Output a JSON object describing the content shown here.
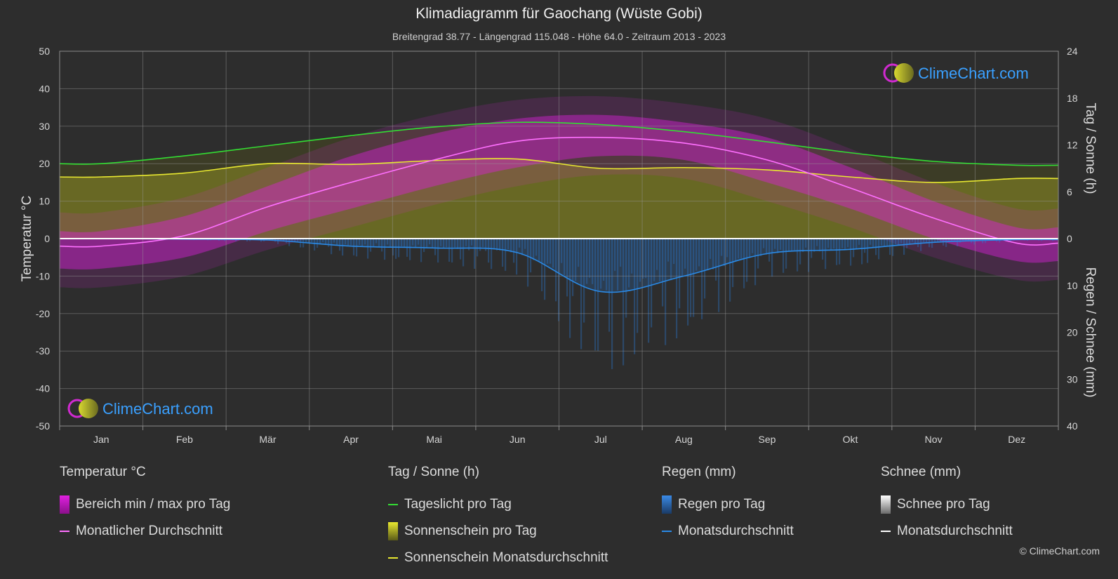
{
  "title": "Klimadiagramm für Gaochang (Wüste Gobi)",
  "subtitle": "Breitengrad 38.77 - Längengrad 115.048 - Höhe 64.0 - Zeitraum 2013 - 2023",
  "watermark": "ClimeChart.com",
  "copyright": "© ClimeChart.com",
  "colors": {
    "background": "#2d2d2d",
    "temp_range": "#e020e0",
    "temp_avg": "#ff70ff",
    "daylight": "#33dd33",
    "sunshine_fill": "#a8a830",
    "sunshine_avg": "#e8e830",
    "rain": "#2a7ad6",
    "rain_avg": "#2a8ae6",
    "snow": "#9a9a9a",
    "snow_avg": "#ffffff",
    "brand": "#3aa0ff"
  },
  "legend": {
    "temperature": {
      "title": "Temperatur °C",
      "range": "Bereich min / max pro Tag",
      "avg": "Monatlicher Durchschnitt"
    },
    "sun": {
      "title": "Tag / Sonne (h)",
      "daylight": "Tageslicht pro Tag",
      "sunshine": "Sonnenschein pro Tag",
      "sunshine_avg": "Sonnenschein Monatsdurchschnitt"
    },
    "rain": {
      "title": "Regen (mm)",
      "rain": "Regen pro Tag",
      "avg": "Monatsdurchschnitt"
    },
    "snow": {
      "title": "Schnee (mm)",
      "snow": "Schnee pro Tag",
      "avg": "Monatsdurchschnitt"
    }
  },
  "chart_data": {
    "type": "line",
    "categories": [
      "Jan",
      "Feb",
      "Mär",
      "Apr",
      "Mai",
      "Jun",
      "Jul",
      "Aug",
      "Sep",
      "Okt",
      "Nov",
      "Dez"
    ],
    "ylabel_left": "Temperatur °C",
    "ylabel_right_top": "Tag / Sonne (h)",
    "ylabel_right_bottom": "Regen / Schnee (mm)",
    "ylim_left": [
      -50,
      50
    ],
    "yticks_left": [
      50,
      40,
      30,
      20,
      10,
      0,
      -10,
      -20,
      -30,
      -40,
      -50
    ],
    "yticks_right_top": [
      24,
      18,
      12,
      6,
      0
    ],
    "yticks_right_bottom": [
      10,
      20,
      30,
      40
    ],
    "grid": true,
    "series": [
      {
        "name": "Monatlicher Durchschnitt",
        "unit": "°C",
        "values": [
          -2,
          0.8,
          8.5,
          15,
          21,
          26,
          27,
          25.5,
          21,
          13.5,
          5.5,
          -1.2
        ]
      },
      {
        "name": "Tageslicht pro Tag",
        "unit": "h",
        "values": [
          9.6,
          10.6,
          11.9,
          13.2,
          14.3,
          14.9,
          14.6,
          13.7,
          12.4,
          11.0,
          9.9,
          9.4
        ]
      },
      {
        "name": "Sonnenschein Monatsdurchschnitt",
        "unit": "h",
        "values": [
          7.9,
          8.4,
          9.6,
          9.5,
          10.0,
          10.2,
          9.0,
          9.1,
          8.8,
          7.9,
          7.2,
          7.7
        ]
      },
      {
        "name": "Regen Monatsdurchschnitt",
        "unit": "mm",
        "values": [
          0,
          0.1,
          0.3,
          1.6,
          2.0,
          3.0,
          11.3,
          8.0,
          3.2,
          2.3,
          0.8,
          0.2
        ]
      },
      {
        "name": "Schnee Monatsdurchschnitt",
        "unit": "mm",
        "values": [
          0,
          0,
          0,
          0,
          0,
          0,
          0,
          0,
          0,
          0,
          0,
          0
        ]
      }
    ],
    "temp_max": [
      2,
      6,
      14,
      22,
      28,
      32,
      33,
      31,
      27,
      19,
      10,
      3
    ],
    "temp_min": [
      -8,
      -5,
      2,
      8,
      14,
      19,
      22,
      21,
      15,
      8,
      0,
      -6
    ]
  }
}
